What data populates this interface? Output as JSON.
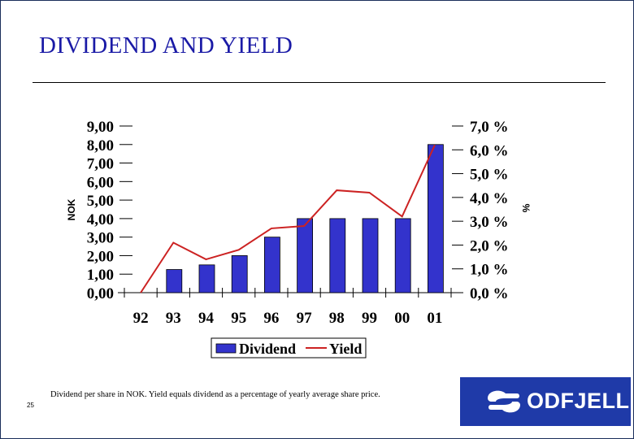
{
  "slide": {
    "title": "DIVIDEND AND YIELD",
    "footnote": "Dividend per share in NOK. Yield equals dividend as a percentage of yearly average share price.",
    "page_number": "25",
    "logo_text": "ODFJELL"
  },
  "colors": {
    "title": "#1a1aa6",
    "bar_fill": "#3333cc",
    "line": "#cc2222",
    "logo_bg": "#1f3aa8"
  },
  "chart_data": {
    "type": "bar",
    "categories": [
      "92",
      "93",
      "94",
      "95",
      "96",
      "97",
      "98",
      "99",
      "00",
      "01"
    ],
    "series": [
      {
        "name": "Dividend",
        "type": "bar",
        "axis": "left",
        "values": [
          0.0,
          1.25,
          1.5,
          2.0,
          3.0,
          4.0,
          4.0,
          4.0,
          4.0,
          8.0
        ]
      },
      {
        "name": "Yield",
        "type": "line",
        "axis": "right",
        "values": [
          0.0,
          2.1,
          1.4,
          1.8,
          2.7,
          2.8,
          4.3,
          4.2,
          3.2,
          6.2
        ]
      }
    ],
    "ylabel": "NOK",
    "y2label": "%",
    "ylim": [
      0,
      9
    ],
    "y2lim": [
      0,
      7
    ],
    "yticks": [
      "0,00",
      "1,00",
      "2,00",
      "3,00",
      "4,00",
      "5,00",
      "6,00",
      "7,00",
      "8,00",
      "9,00"
    ],
    "y2ticks": [
      "0,0 %",
      "1,0 %",
      "2,0 %",
      "3,0 %",
      "4,0 %",
      "5,0 %",
      "6,0 %",
      "7,0 %"
    ],
    "legend": {
      "placement": "bottom",
      "entries": [
        "Dividend",
        "Yield"
      ]
    },
    "grid": false
  }
}
